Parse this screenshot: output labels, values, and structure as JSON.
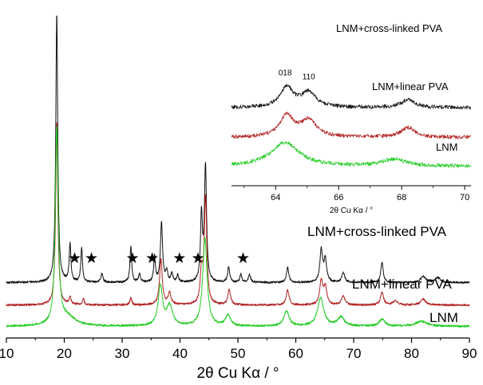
{
  "chart_data": [
    {
      "type": "line",
      "xlabel": "2θ Cu Kα / °",
      "xlim": [
        10,
        90
      ],
      "xticks": [
        10,
        20,
        30,
        40,
        50,
        60,
        70,
        80,
        90
      ],
      "yticks": false,
      "series": [
        {
          "name": "LNM",
          "color": "#22cc22",
          "offset": 0,
          "baseline": 0.1,
          "peaks": [
            {
              "x": 18.7,
              "h": 9.8,
              "w": 0.3
            },
            {
              "x": 36.6,
              "h": 2.0,
              "w": 0.45
            },
            {
              "x": 38.2,
              "h": 1.0,
              "w": 0.6
            },
            {
              "x": 44.3,
              "h": 4.4,
              "w": 0.45
            },
            {
              "x": 48.3,
              "h": 0.55,
              "w": 0.5
            },
            {
              "x": 58.4,
              "h": 0.75,
              "w": 0.55
            },
            {
              "x": 64.3,
              "h": 1.4,
              "w": 0.65
            },
            {
              "x": 67.8,
              "h": 0.45,
              "w": 0.7
            },
            {
              "x": 74.9,
              "h": 0.35,
              "w": 0.6
            },
            {
              "x": 81.7,
              "h": 0.25,
              "w": 1.2
            },
            {
              "x": 20.5,
              "h": 0.45,
              "w": 1.7
            }
          ]
        },
        {
          "name": "LNM+linear PVA",
          "color": "#b22222",
          "offset": 1.05,
          "baseline": 0.12,
          "peaks": [
            {
              "x": 18.7,
              "h": 9.2,
              "w": 0.22
            },
            {
              "x": 21.0,
              "h": 0.35,
              "w": 0.2
            },
            {
              "x": 23.3,
              "h": 0.3,
              "w": 0.2
            },
            {
              "x": 31.5,
              "h": 0.35,
              "w": 0.2
            },
            {
              "x": 36.7,
              "h": 2.3,
              "w": 0.28
            },
            {
              "x": 38.2,
              "h": 0.6,
              "w": 0.3
            },
            {
              "x": 43.7,
              "h": 1.6,
              "w": 0.25
            },
            {
              "x": 44.4,
              "h": 5.4,
              "w": 0.26
            },
            {
              "x": 48.5,
              "h": 0.75,
              "w": 0.28
            },
            {
              "x": 58.6,
              "h": 0.75,
              "w": 0.3
            },
            {
              "x": 64.4,
              "h": 1.2,
              "w": 0.32
            },
            {
              "x": 65.1,
              "h": 0.85,
              "w": 0.32
            },
            {
              "x": 68.2,
              "h": 0.45,
              "w": 0.35
            },
            {
              "x": 74.9,
              "h": 0.65,
              "w": 0.3
            },
            {
              "x": 77.2,
              "h": 0.2,
              "w": 0.5
            },
            {
              "x": 82.0,
              "h": 0.3,
              "w": 0.5
            }
          ]
        },
        {
          "name": "LNM+cross-linked PVA",
          "color": "#111111",
          "offset": 2.25,
          "baseline": 0.05,
          "peaks": [
            {
              "x": 18.7,
              "h": 13.5,
              "w": 0.2
            },
            {
              "x": 21.0,
              "h": 1.9,
              "w": 0.18
            },
            {
              "x": 23.0,
              "h": 1.7,
              "w": 0.18
            },
            {
              "x": 26.5,
              "h": 0.45,
              "w": 0.2
            },
            {
              "x": 31.5,
              "h": 1.8,
              "w": 0.18
            },
            {
              "x": 33.0,
              "h": 0.4,
              "w": 0.2
            },
            {
              "x": 35.6,
              "h": 1.3,
              "w": 0.18
            },
            {
              "x": 36.8,
              "h": 3.0,
              "w": 0.22
            },
            {
              "x": 37.7,
              "h": 0.55,
              "w": 0.2
            },
            {
              "x": 38.6,
              "h": 0.45,
              "w": 0.2
            },
            {
              "x": 39.6,
              "h": 0.35,
              "w": 0.2
            },
            {
              "x": 43.7,
              "h": 3.3,
              "w": 0.2
            },
            {
              "x": 44.4,
              "h": 5.8,
              "w": 0.22
            },
            {
              "x": 48.4,
              "h": 0.75,
              "w": 0.22
            },
            {
              "x": 50.5,
              "h": 0.4,
              "w": 0.2
            },
            {
              "x": 52.0,
              "h": 0.4,
              "w": 0.22
            },
            {
              "x": 58.6,
              "h": 0.75,
              "w": 0.25
            },
            {
              "x": 64.4,
              "h": 1.6,
              "w": 0.28
            },
            {
              "x": 65.1,
              "h": 1.1,
              "w": 0.28
            },
            {
              "x": 68.2,
              "h": 0.5,
              "w": 0.3
            },
            {
              "x": 74.9,
              "h": 1.0,
              "w": 0.25
            },
            {
              "x": 82.0,
              "h": 0.3,
              "w": 0.5
            },
            {
              "x": 84.5,
              "h": 0.25,
              "w": 0.5
            }
          ]
        }
      ],
      "labels": [
        "LNM+cross-linked PVA",
        "LNM+linear PVA",
        "LNM"
      ],
      "star_marker": "★",
      "star_markers_x": [
        21.8,
        24.7,
        31.8,
        35.2,
        39.9,
        43.1,
        50.9
      ]
    },
    {
      "type": "line",
      "inset": true,
      "xlabel": "2θ Cu Kα / °",
      "xlim": [
        62.6,
        70.2
      ],
      "xticks": [
        64,
        66,
        68,
        70
      ],
      "series": [
        {
          "name": "LNM",
          "color": "#22cc22",
          "offset": 0,
          "baseline": 0.15,
          "peaks": [
            {
              "x": 64.3,
              "h": 1.35,
              "w": 0.55
            },
            {
              "x": 67.75,
              "h": 0.4,
              "w": 0.45
            }
          ]
        },
        {
          "name": "LNM+linear PVA",
          "color": "#b22222",
          "offset": 1.7,
          "baseline": 0.1,
          "peaks": [
            {
              "x": 64.35,
              "h": 1.2,
              "w": 0.27
            },
            {
              "x": 65.05,
              "h": 0.95,
              "w": 0.3
            },
            {
              "x": 68.2,
              "h": 0.55,
              "w": 0.27
            }
          ]
        },
        {
          "name": "LNM+cross-linked PVA",
          "color": "#111111",
          "offset": 3.4,
          "baseline": 0.1,
          "peaks": [
            {
              "x": 64.35,
              "h": 1.15,
              "w": 0.25
            },
            {
              "x": 65.05,
              "h": 0.85,
              "w": 0.28
            },
            {
              "x": 68.2,
              "h": 0.45,
              "w": 0.25
            }
          ]
        }
      ],
      "labels": [
        "LNM+cross-linked PVA",
        "LNM+linear PVA",
        "LNM"
      ],
      "peak_labels": [
        {
          "x": 64.3,
          "text": "018"
        },
        {
          "x": 65.05,
          "text": "110"
        }
      ]
    }
  ]
}
